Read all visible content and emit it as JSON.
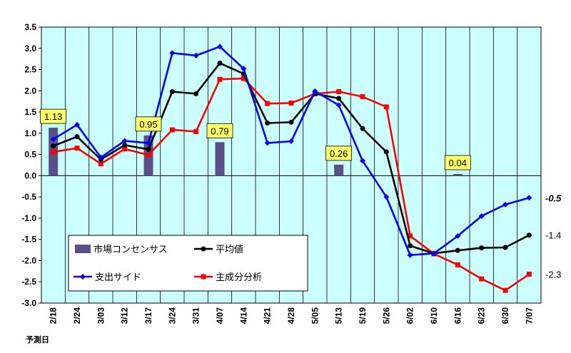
{
  "chart_data": {
    "type": "line",
    "xlabel": "予測日",
    "categories": [
      "2/18",
      "2/24",
      "3/03",
      "3/12",
      "3/17",
      "3/24",
      "3/31",
      "4/07",
      "4/14",
      "4/21",
      "4/28",
      "5/05",
      "5/13",
      "5/19",
      "5/26",
      "6/02",
      "6/10",
      "6/16",
      "6/23",
      "6/30",
      "7/07"
    ],
    "ylim": [
      -3.0,
      3.5
    ],
    "yticks": [
      "3.5",
      "3.0",
      "2.5",
      "2.0",
      "1.5",
      "1.0",
      "0.5",
      "0.0",
      "-0.5",
      "-1.0",
      "-1.5",
      "-2.0",
      "-2.5",
      "-3.0"
    ],
    "grid": "vertical",
    "legend_position": "bottom-left",
    "consensus": {
      "name": "市場コンセンサス",
      "color": "#5b4f8a",
      "values": [
        1.13,
        null,
        null,
        null,
        0.95,
        null,
        null,
        0.79,
        null,
        null,
        null,
        null,
        0.26,
        null,
        null,
        null,
        null,
        0.04,
        null,
        null,
        null
      ],
      "labels": [
        "1.13",
        null,
        null,
        null,
        "0.95",
        null,
        null,
        "0.79",
        null,
        null,
        null,
        null,
        "0.26",
        null,
        null,
        null,
        null,
        "0.04",
        null,
        null,
        null
      ]
    },
    "series": [
      {
        "name": "平均値",
        "color": "#000000",
        "marker": "circle",
        "values": [
          0.7,
          0.92,
          0.38,
          0.72,
          0.62,
          1.98,
          1.93,
          2.65,
          2.4,
          1.24,
          1.26,
          1.93,
          1.82,
          1.11,
          0.56,
          -1.65,
          -1.83,
          -1.76,
          -1.7,
          -1.69,
          -1.4
        ]
      },
      {
        "name": "支出サイド",
        "color": "#0000ff",
        "marker": "diamond",
        "values": [
          0.86,
          1.2,
          0.43,
          0.82,
          0.77,
          2.89,
          2.83,
          3.04,
          2.52,
          0.77,
          0.81,
          1.99,
          1.66,
          0.35,
          -0.5,
          -1.87,
          -1.83,
          -1.42,
          -0.95,
          -0.68,
          -0.52
        ]
      },
      {
        "name": "主成分分析",
        "color": "#ff0000",
        "marker": "square",
        "values": [
          0.56,
          0.65,
          0.28,
          0.63,
          0.49,
          1.08,
          1.04,
          2.27,
          2.29,
          1.7,
          1.71,
          1.93,
          1.98,
          1.86,
          1.62,
          -1.42,
          -1.84,
          -2.1,
          -2.43,
          -2.7,
          -2.32
        ]
      }
    ],
    "end_labels": [
      {
        "series": "支出サイド",
        "text": "-0.5",
        "bold_italic": true
      },
      {
        "series": "平均値",
        "text": "-1.4",
        "bold_italic": false
      },
      {
        "series": "主成分分析",
        "text": "-2.3",
        "bold_italic": false
      }
    ],
    "colors": {
      "plot_background": "#ccffff",
      "callout_background": "#ffff66"
    }
  }
}
